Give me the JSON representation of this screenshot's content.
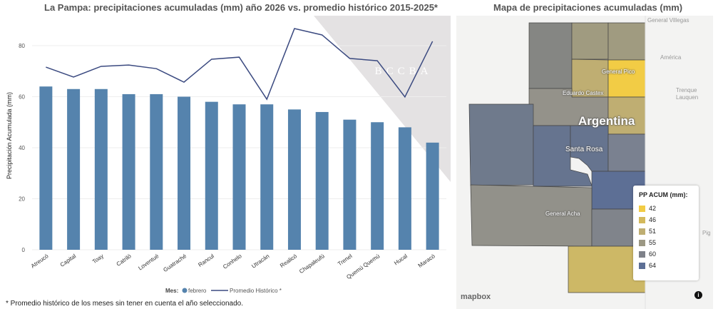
{
  "chart_data": {
    "type": "bar",
    "title": "La Pampa: precipitaciones acumuladas (mm) año 2026 vs. promedio histórico 2015-2025*",
    "ylabel": "Precipitación Acumulada (mm)",
    "xlabel": "",
    "ylim": [
      0,
      90
    ],
    "yticks": [
      0,
      20,
      40,
      60,
      80
    ],
    "categories": [
      "Atreucó",
      "Capital",
      "Toay",
      "Catriló",
      "Loventué",
      "Guatraché",
      "Rancul",
      "Conhelo",
      "Utracán",
      "Realicó",
      "Chapaleufú",
      "Trenel",
      "Quemú Quemú",
      "Hucal",
      "Maracó"
    ],
    "series": [
      {
        "name": "febrero",
        "type": "bar",
        "color": "#5583ad",
        "values": [
          64,
          63,
          63,
          61,
          61,
          60,
          58,
          57,
          57,
          55,
          54,
          51,
          50,
          48,
          42
        ]
      },
      {
        "name": "Promedio Histórico *",
        "type": "line",
        "color": "#3b4a80",
        "values": [
          71.6,
          67.7,
          71.9,
          72.4,
          71,
          65.7,
          74.7,
          75.5,
          59,
          86.7,
          84.2,
          75,
          74.1,
          59.9,
          81.7
        ]
      }
    ],
    "legend_title": "Mes:",
    "legend_position": "bottom",
    "grid": true
  },
  "watermark": "BCCBA",
  "footnote": "* Promedio histórico de los meses sin tener en cuenta el año seleccionado.",
  "map": {
    "title": "Mapa de precipitaciones acumuladas (mm)",
    "country_label": "Argentina",
    "places": [
      "General Pico",
      "Eduardo Castex",
      "Santa Rosa",
      "General Acha"
    ],
    "outside_places": [
      "General Villegas",
      "América",
      "Trenque Lauquen",
      "Pig"
    ],
    "legend_title": "PP ACUM (mm):",
    "legend": [
      {
        "label": "42",
        "color": "#f2cc45"
      },
      {
        "label": "46",
        "color": "#d4b95c"
      },
      {
        "label": "51",
        "color": "#bfae72"
      },
      {
        "label": "55",
        "color": "#9c9884"
      },
      {
        "label": "60",
        "color": "#7e8189"
      },
      {
        "label": "64",
        "color": "#5d6f95"
      }
    ],
    "attribution": "mapbox"
  }
}
